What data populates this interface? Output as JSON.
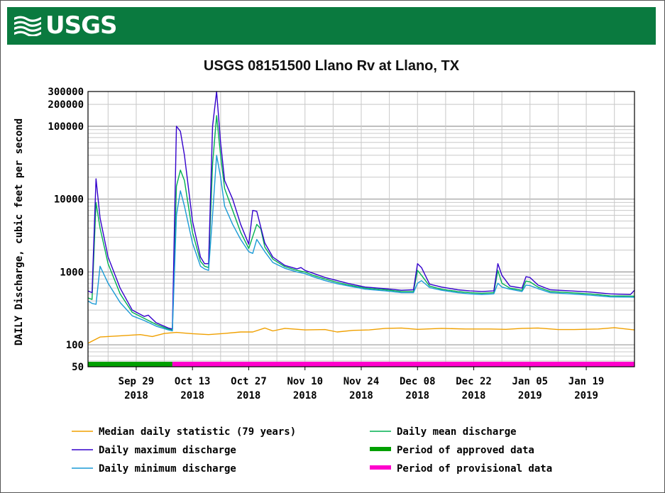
{
  "header": {
    "logo_text": "USGS",
    "bg_color": "#0a7a3f"
  },
  "chart_data": {
    "type": "line",
    "title": "USGS 08151500 Llano Rv at Llano, TX",
    "ylabel": "DAILY Discharge, cubic feet per second",
    "xlabel": "",
    "yscale": "log",
    "ylim": [
      50,
      300000
    ],
    "xlim": [
      "2018-09-17",
      "2019-01-31"
    ],
    "ytick_labels": [
      "300000",
      "200000",
      "100000",
      "10000",
      "1000",
      "100",
      "50"
    ],
    "yticks": [
      300000,
      200000,
      100000,
      10000,
      1000,
      100,
      50
    ],
    "xtick_dates": [
      "2018-09-29",
      "2018-10-13",
      "2018-10-27",
      "2018-11-10",
      "2018-11-24",
      "2018-12-08",
      "2018-12-22",
      "2019-01-05",
      "2019-01-19"
    ],
    "xtick_labels": [
      {
        "line1": "Sep 29",
        "line2": "2018"
      },
      {
        "line1": "Oct 13",
        "line2": "2018"
      },
      {
        "line1": "Oct 27",
        "line2": "2018"
      },
      {
        "line1": "Nov 10",
        "line2": "2018"
      },
      {
        "line1": "Nov 24",
        "line2": "2018"
      },
      {
        "line1": "Dec 08",
        "line2": "2018"
      },
      {
        "line1": "Dec 22",
        "line2": "2018"
      },
      {
        "line1": "Jan 05",
        "line2": "2019"
      },
      {
        "line1": "Jan 19",
        "line2": "2019"
      }
    ],
    "grid": true,
    "series": [
      {
        "name": "Median daily statistic (79 years)",
        "color": "#f0a000",
        "points": [
          [
            "2018-09-17",
            105
          ],
          [
            "2018-09-20",
            128
          ],
          [
            "2018-09-25",
            133
          ],
          [
            "2018-09-30",
            138
          ],
          [
            "2018-10-03",
            130
          ],
          [
            "2018-10-06",
            143
          ],
          [
            "2018-10-09",
            148
          ],
          [
            "2018-10-13",
            142
          ],
          [
            "2018-10-17",
            138
          ],
          [
            "2018-10-21",
            143
          ],
          [
            "2018-10-25",
            150
          ],
          [
            "2018-10-28",
            150
          ],
          [
            "2018-10-31",
            170
          ],
          [
            "2018-11-02",
            155
          ],
          [
            "2018-11-05",
            168
          ],
          [
            "2018-11-10",
            160
          ],
          [
            "2018-11-15",
            162
          ],
          [
            "2018-11-18",
            150
          ],
          [
            "2018-11-22",
            158
          ],
          [
            "2018-11-26",
            160
          ],
          [
            "2018-11-30",
            168
          ],
          [
            "2018-12-04",
            170
          ],
          [
            "2018-12-08",
            163
          ],
          [
            "2018-12-14",
            168
          ],
          [
            "2018-12-20",
            165
          ],
          [
            "2018-12-26",
            165
          ],
          [
            "2018-12-30",
            163
          ],
          [
            "2019-01-03",
            168
          ],
          [
            "2019-01-07",
            170
          ],
          [
            "2019-01-12",
            162
          ],
          [
            "2019-01-16",
            162
          ],
          [
            "2019-01-22",
            165
          ],
          [
            "2019-01-26",
            172
          ],
          [
            "2019-01-31",
            160
          ]
        ]
      },
      {
        "name": "Daily mean discharge",
        "color": "#00b050",
        "points": [
          [
            "2018-09-17",
            440
          ],
          [
            "2018-09-18",
            420
          ],
          [
            "2018-09-19",
            9000
          ],
          [
            "2018-09-20",
            4000
          ],
          [
            "2018-09-22",
            1300
          ],
          [
            "2018-09-25",
            500
          ],
          [
            "2018-09-28",
            280
          ],
          [
            "2018-10-01",
            230
          ],
          [
            "2018-10-04",
            190
          ],
          [
            "2018-10-07",
            165
          ],
          [
            "2018-10-08",
            160
          ],
          [
            "2018-10-09",
            15000
          ],
          [
            "2018-10-10",
            25000
          ],
          [
            "2018-10-11",
            18000
          ],
          [
            "2018-10-13",
            3500
          ],
          [
            "2018-10-15",
            1400
          ],
          [
            "2018-10-16",
            1200
          ],
          [
            "2018-10-17",
            1150
          ],
          [
            "2018-10-18",
            30000
          ],
          [
            "2018-10-19",
            140000
          ],
          [
            "2018-10-20",
            40000
          ],
          [
            "2018-10-21",
            14000
          ],
          [
            "2018-10-23",
            7000
          ],
          [
            "2018-10-25",
            3500
          ],
          [
            "2018-10-27",
            2100
          ],
          [
            "2018-10-29",
            4500
          ],
          [
            "2018-10-30",
            3900
          ],
          [
            "2018-10-31",
            2200
          ],
          [
            "2018-11-02",
            1500
          ],
          [
            "2018-11-05",
            1180
          ],
          [
            "2018-11-08",
            1050
          ],
          [
            "2018-11-10",
            1000
          ],
          [
            "2018-11-12",
            900
          ],
          [
            "2018-11-15",
            800
          ],
          [
            "2018-11-18",
            720
          ],
          [
            "2018-11-21",
            660
          ],
          [
            "2018-11-25",
            600
          ],
          [
            "2018-11-30",
            570
          ],
          [
            "2018-12-04",
            540
          ],
          [
            "2018-12-07",
            540
          ],
          [
            "2018-12-08",
            1050
          ],
          [
            "2018-12-09",
            900
          ],
          [
            "2018-12-11",
            640
          ],
          [
            "2018-12-14",
            580
          ],
          [
            "2018-12-18",
            540
          ],
          [
            "2018-12-21",
            520
          ],
          [
            "2018-12-24",
            510
          ],
          [
            "2018-12-27",
            520
          ],
          [
            "2018-12-28",
            1050
          ],
          [
            "2018-12-29",
            700
          ],
          [
            "2018-12-31",
            600
          ],
          [
            "2019-01-03",
            560
          ],
          [
            "2019-01-04",
            750
          ],
          [
            "2019-01-05",
            730
          ],
          [
            "2019-01-07",
            620
          ],
          [
            "2019-01-10",
            540
          ],
          [
            "2019-01-15",
            520
          ],
          [
            "2019-01-20",
            500
          ],
          [
            "2019-01-25",
            470
          ],
          [
            "2019-01-31",
            465
          ]
        ]
      },
      {
        "name": "Daily maximum discharge",
        "color": "#3300cc",
        "points": [
          [
            "2018-09-17",
            550
          ],
          [
            "2018-09-18",
            520
          ],
          [
            "2018-09-19",
            19000
          ],
          [
            "2018-09-20",
            5500
          ],
          [
            "2018-09-22",
            1600
          ],
          [
            "2018-09-25",
            600
          ],
          [
            "2018-09-28",
            300
          ],
          [
            "2018-10-01",
            245
          ],
          [
            "2018-10-02",
            255
          ],
          [
            "2018-10-04",
            200
          ],
          [
            "2018-10-07",
            170
          ],
          [
            "2018-10-08",
            165
          ],
          [
            "2018-10-09",
            100000
          ],
          [
            "2018-10-10",
            85000
          ],
          [
            "2018-10-11",
            40000
          ],
          [
            "2018-10-13",
            5000
          ],
          [
            "2018-10-15",
            1600
          ],
          [
            "2018-10-16",
            1300
          ],
          [
            "2018-10-17",
            1300
          ],
          [
            "2018-10-18",
            100000
          ],
          [
            "2018-10-19",
            300000
          ],
          [
            "2018-10-20",
            60000
          ],
          [
            "2018-10-21",
            18000
          ],
          [
            "2018-10-23",
            10000
          ],
          [
            "2018-10-25",
            4500
          ],
          [
            "2018-10-27",
            2400
          ],
          [
            "2018-10-28",
            7000
          ],
          [
            "2018-10-29",
            6800
          ],
          [
            "2018-10-31",
            2500
          ],
          [
            "2018-11-02",
            1600
          ],
          [
            "2018-11-05",
            1230
          ],
          [
            "2018-11-08",
            1100
          ],
          [
            "2018-11-09",
            1150
          ],
          [
            "2018-11-10",
            1050
          ],
          [
            "2018-11-12",
            960
          ],
          [
            "2018-11-15",
            840
          ],
          [
            "2018-11-18",
            760
          ],
          [
            "2018-11-21",
            690
          ],
          [
            "2018-11-25",
            620
          ],
          [
            "2018-11-30",
            590
          ],
          [
            "2018-12-04",
            560
          ],
          [
            "2018-12-07",
            570
          ],
          [
            "2018-12-08",
            1300
          ],
          [
            "2018-12-09",
            1150
          ],
          [
            "2018-12-11",
            680
          ],
          [
            "2018-12-14",
            620
          ],
          [
            "2018-12-18",
            570
          ],
          [
            "2018-12-21",
            550
          ],
          [
            "2018-12-24",
            540
          ],
          [
            "2018-12-27",
            550
          ],
          [
            "2018-12-28",
            1300
          ],
          [
            "2018-12-29",
            900
          ],
          [
            "2018-12-31",
            640
          ],
          [
            "2019-01-03",
            600
          ],
          [
            "2019-01-04",
            860
          ],
          [
            "2019-01-05",
            840
          ],
          [
            "2019-01-07",
            660
          ],
          [
            "2019-01-10",
            570
          ],
          [
            "2019-01-15",
            550
          ],
          [
            "2019-01-20",
            530
          ],
          [
            "2019-01-25",
            500
          ],
          [
            "2019-01-30",
            490
          ],
          [
            "2019-01-31",
            560
          ]
        ]
      },
      {
        "name": "Daily minimum discharge",
        "color": "#1a9ad6",
        "points": [
          [
            "2018-09-17",
            400
          ],
          [
            "2018-09-18",
            370
          ],
          [
            "2018-09-19",
            360
          ],
          [
            "2018-09-20",
            1200
          ],
          [
            "2018-09-22",
            700
          ],
          [
            "2018-09-25",
            380
          ],
          [
            "2018-09-28",
            250
          ],
          [
            "2018-10-01",
            215
          ],
          [
            "2018-10-04",
            180
          ],
          [
            "2018-10-07",
            160
          ],
          [
            "2018-10-08",
            155
          ],
          [
            "2018-10-09",
            6000
          ],
          [
            "2018-10-10",
            13000
          ],
          [
            "2018-10-11",
            8000
          ],
          [
            "2018-10-13",
            2500
          ],
          [
            "2018-10-15",
            1200
          ],
          [
            "2018-10-16",
            1100
          ],
          [
            "2018-10-17",
            1050
          ],
          [
            "2018-10-18",
            6000
          ],
          [
            "2018-10-19",
            40000
          ],
          [
            "2018-10-20",
            20000
          ],
          [
            "2018-10-21",
            8000
          ],
          [
            "2018-10-23",
            4500
          ],
          [
            "2018-10-25",
            2800
          ],
          [
            "2018-10-27",
            1900
          ],
          [
            "2018-10-28",
            1800
          ],
          [
            "2018-10-29",
            2800
          ],
          [
            "2018-10-31",
            1900
          ],
          [
            "2018-11-02",
            1350
          ],
          [
            "2018-11-05",
            1120
          ],
          [
            "2018-11-08",
            1000
          ],
          [
            "2018-11-10",
            950
          ],
          [
            "2018-11-12",
            860
          ],
          [
            "2018-11-15",
            760
          ],
          [
            "2018-11-18",
            690
          ],
          [
            "2018-11-21",
            640
          ],
          [
            "2018-11-25",
            580
          ],
          [
            "2018-11-30",
            550
          ],
          [
            "2018-12-04",
            520
          ],
          [
            "2018-12-07",
            520
          ],
          [
            "2018-12-08",
            700
          ],
          [
            "2018-12-09",
            760
          ],
          [
            "2018-12-11",
            610
          ],
          [
            "2018-12-14",
            560
          ],
          [
            "2018-12-18",
            520
          ],
          [
            "2018-12-21",
            500
          ],
          [
            "2018-12-24",
            490
          ],
          [
            "2018-12-27",
            500
          ],
          [
            "2018-12-28",
            700
          ],
          [
            "2018-12-29",
            620
          ],
          [
            "2018-12-31",
            580
          ],
          [
            "2019-01-03",
            540
          ],
          [
            "2019-01-04",
            660
          ],
          [
            "2019-01-05",
            650
          ],
          [
            "2019-01-07",
            590
          ],
          [
            "2019-01-10",
            520
          ],
          [
            "2019-01-15",
            500
          ],
          [
            "2019-01-20",
            480
          ],
          [
            "2019-01-25",
            455
          ],
          [
            "2019-01-31",
            450
          ]
        ]
      }
    ],
    "periods": [
      {
        "name": "Period of approved data",
        "color": "#00a000",
        "start": "2018-09-17",
        "end": "2018-10-08"
      },
      {
        "name": "Period of provisional data",
        "color": "#ff00cc",
        "start": "2018-10-08",
        "end": "2019-01-31"
      }
    ],
    "legend": {
      "placement": "bottom",
      "items": [
        {
          "label": "Median daily statistic (79 years)",
          "color": "#f0a000",
          "kind": "line"
        },
        {
          "label": "Daily mean discharge",
          "color": "#00b050",
          "kind": "line"
        },
        {
          "label": "Daily maximum discharge",
          "color": "#3300cc",
          "kind": "line"
        },
        {
          "label": "Period of approved data",
          "color": "#00a000",
          "kind": "bar"
        },
        {
          "label": "Daily minimum discharge",
          "color": "#1a9ad6",
          "kind": "line"
        },
        {
          "label": "Period of provisional data",
          "color": "#ff00cc",
          "kind": "bar"
        }
      ]
    }
  }
}
